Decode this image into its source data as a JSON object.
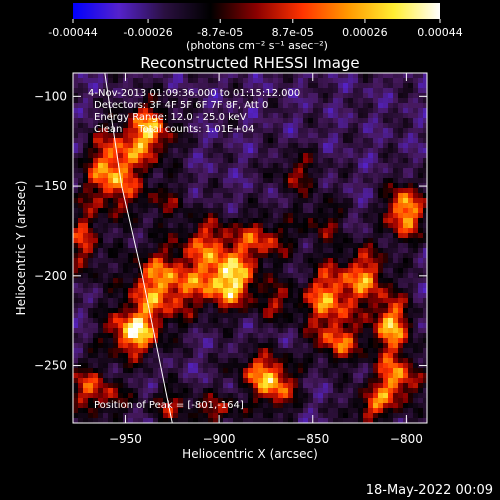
{
  "colorbar": {
    "tick_labels": [
      "-0.00044",
      "-0.00026",
      "-8.7e-05",
      "8.7e-05",
      "0.00026",
      "0.00044"
    ],
    "tick_values": [
      -0.00044,
      -0.00026,
      -8.7e-05,
      8.7e-05,
      0.00026,
      0.00044
    ],
    "range": [
      -0.00044,
      0.00044
    ],
    "units_text": "(photons cm⁻² s⁻¹ asec⁻²)",
    "colormap": "blue-purple-black-red-orange-yellow-white",
    "gradient_stops": [
      "#0000ff",
      "#5522cc",
      "#2a1040",
      "#000000",
      "#8b0000",
      "#ff3300",
      "#ff9900",
      "#ffee33",
      "#ffffff"
    ]
  },
  "chart_data": {
    "type": "heatmap",
    "title": "Reconstructed RHESSI Image",
    "xlabel": "Heliocentric X (arcsec)",
    "ylabel": "Heliocentric Y (arcsec)",
    "xlim": [
      -978,
      -789
    ],
    "ylim": [
      -282,
      -87
    ],
    "x_ticks": [
      -950,
      -900,
      -850,
      -800
    ],
    "y_ticks": [
      -100,
      -150,
      -200,
      -250
    ],
    "x_tick_labels": [
      "−950",
      "−900",
      "−850",
      "−800"
    ],
    "y_tick_labels": [
      "−100",
      "−150",
      "−200",
      "−250"
    ],
    "info_lines": [
      "4-Nov-2013 01:09:36.000 to 01:15:12.000",
      "Detectors: 3F 4F 5F 6F 7F 8F, Att 0",
      "Energy Range: 12.0 - 25.0 keV",
      "Clean     Total counts: 1.01E+04"
    ],
    "peak_text": "Position of Peak = [-801,-164]",
    "peak_position": [
      -801,
      -164
    ],
    "bright_sources": [
      {
        "x": -957,
        "y": -142,
        "amp": 0.9,
        "sx": 10,
        "sy": 16
      },
      {
        "x": -937,
        "y": -120,
        "amp": 0.85,
        "sx": 9,
        "sy": 12
      },
      {
        "x": -930,
        "y": -205,
        "amp": 0.85,
        "sx": 14,
        "sy": 14
      },
      {
        "x": -946,
        "y": -232,
        "amp": 0.95,
        "sx": 10,
        "sy": 10
      },
      {
        "x": -895,
        "y": -203,
        "amp": 1.0,
        "sx": 11,
        "sy": 11
      },
      {
        "x": -905,
        "y": -180,
        "amp": 0.55,
        "sx": 12,
        "sy": 10
      },
      {
        "x": -876,
        "y": -180,
        "amp": 0.6,
        "sx": 10,
        "sy": 9
      },
      {
        "x": -870,
        "y": -262,
        "amp": 0.75,
        "sx": 8,
        "sy": 10
      },
      {
        "x": -880,
        "y": -252,
        "amp": 0.5,
        "sx": 10,
        "sy": 8
      },
      {
        "x": -842,
        "y": -213,
        "amp": 0.8,
        "sx": 9,
        "sy": 14
      },
      {
        "x": -836,
        "y": -238,
        "amp": 0.6,
        "sx": 9,
        "sy": 8
      },
      {
        "x": -858,
        "y": -143,
        "amp": 0.45,
        "sx": 9,
        "sy": 9
      },
      {
        "x": -822,
        "y": -200,
        "amp": 0.7,
        "sx": 9,
        "sy": 12
      },
      {
        "x": -801,
        "y": -164,
        "amp": 1.0,
        "sx": 7,
        "sy": 11
      },
      {
        "x": -808,
        "y": -228,
        "amp": 0.85,
        "sx": 8,
        "sy": 12
      },
      {
        "x": -805,
        "y": -258,
        "amp": 0.8,
        "sx": 9,
        "sy": 9
      },
      {
        "x": -818,
        "y": -273,
        "amp": 0.6,
        "sx": 9,
        "sy": 7
      },
      {
        "x": -972,
        "y": -182,
        "amp": 0.6,
        "sx": 6,
        "sy": 14
      },
      {
        "x": -972,
        "y": -262,
        "amp": 0.55,
        "sx": 8,
        "sy": 10
      },
      {
        "x": -958,
        "y": -268,
        "amp": 0.45,
        "sx": 7,
        "sy": 8
      },
      {
        "x": -925,
        "y": -272,
        "amp": 0.5,
        "sx": 9,
        "sy": 7
      },
      {
        "x": -900,
        "y": -275,
        "amp": 0.55,
        "sx": 8,
        "sy": 6
      },
      {
        "x": -868,
        "y": -215,
        "amp": 0.45,
        "sx": 8,
        "sy": 8
      },
      {
        "x": -845,
        "y": -170,
        "amp": 0.4,
        "sx": 9,
        "sy": 9
      },
      {
        "x": -930,
        "y": -158,
        "amp": 0.35,
        "sx": 10,
        "sy": 8
      }
    ],
    "limb_curve": [
      [
        -961,
        -87
      ],
      [
        -952,
        -150
      ],
      [
        -941,
        -200
      ],
      [
        -925,
        -282
      ]
    ]
  },
  "footer": {
    "timestamp": "18-May-2022 00:09"
  }
}
